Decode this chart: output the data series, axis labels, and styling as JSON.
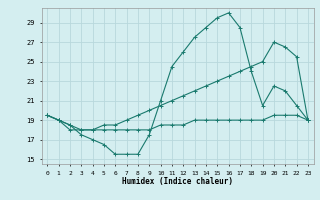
{
  "title": "",
  "xlabel": "Humidex (Indice chaleur)",
  "bg_color": "#d4eef0",
  "grid_color": "#b8d8dc",
  "line_color": "#1a7a6e",
  "xlim": [
    -0.5,
    23.5
  ],
  "ylim": [
    14.5,
    30.5
  ],
  "yticks": [
    15,
    17,
    19,
    21,
    23,
    25,
    27,
    29
  ],
  "xticks": [
    0,
    1,
    2,
    3,
    4,
    5,
    6,
    7,
    8,
    9,
    10,
    11,
    12,
    13,
    14,
    15,
    16,
    17,
    18,
    19,
    20,
    21,
    22,
    23
  ],
  "line1_x": [
    0,
    1,
    2,
    3,
    4,
    5,
    6,
    7,
    8,
    9,
    10,
    11,
    12,
    13,
    14,
    15,
    16,
    17,
    18,
    19,
    20,
    21,
    22,
    23
  ],
  "line1_y": [
    19.5,
    19.0,
    18.5,
    17.5,
    17.0,
    16.5,
    15.5,
    15.5,
    15.5,
    17.5,
    21.0,
    24.5,
    26.0,
    27.5,
    28.5,
    29.5,
    30.0,
    28.5,
    24.0,
    20.5,
    22.5,
    22.0,
    20.5,
    19.0
  ],
  "line2_x": [
    0,
    1,
    2,
    3,
    4,
    5,
    6,
    7,
    8,
    9,
    10,
    11,
    12,
    13,
    14,
    15,
    16,
    17,
    18,
    19,
    20,
    21,
    22,
    23
  ],
  "line2_y": [
    19.5,
    19.0,
    18.5,
    18.0,
    18.0,
    18.5,
    18.5,
    19.0,
    19.5,
    20.0,
    20.5,
    21.0,
    21.5,
    22.0,
    22.5,
    23.0,
    23.5,
    24.0,
    24.5,
    25.0,
    27.0,
    26.5,
    25.5,
    19.0
  ],
  "line3_x": [
    0,
    1,
    2,
    3,
    4,
    5,
    6,
    7,
    8,
    9,
    10,
    11,
    12,
    13,
    14,
    15,
    16,
    17,
    18,
    19,
    20,
    21,
    22,
    23
  ],
  "line3_y": [
    19.5,
    19.0,
    18.0,
    18.0,
    18.0,
    18.0,
    18.0,
    18.0,
    18.0,
    18.0,
    18.5,
    18.5,
    18.5,
    19.0,
    19.0,
    19.0,
    19.0,
    19.0,
    19.0,
    19.0,
    19.5,
    19.5,
    19.5,
    19.0
  ]
}
